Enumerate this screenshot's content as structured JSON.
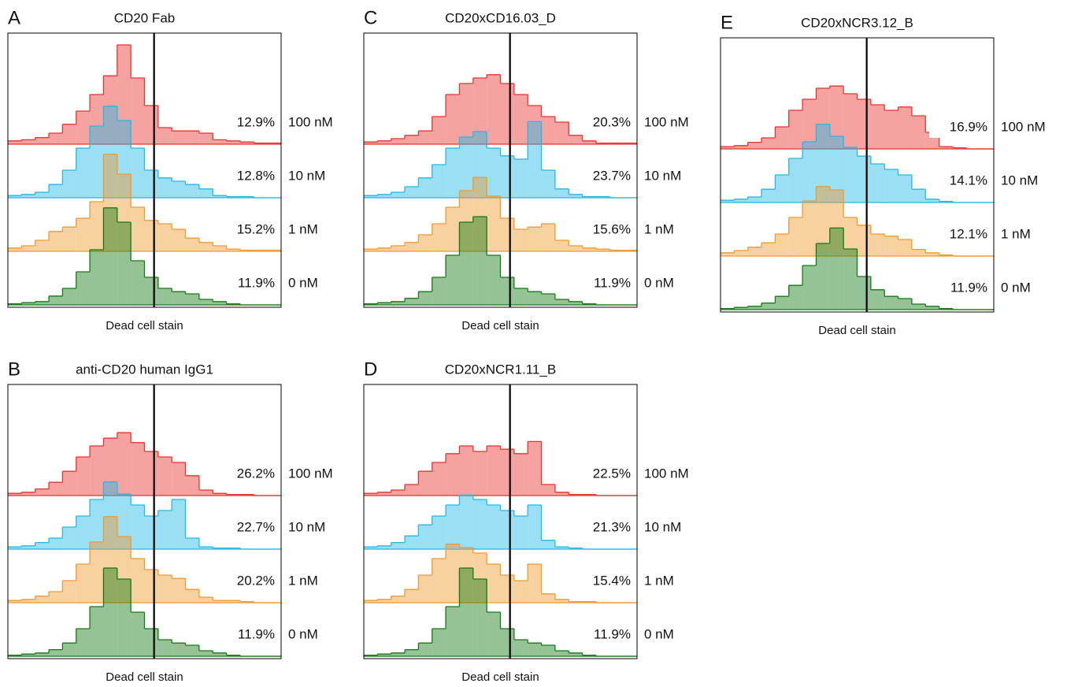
{
  "chart_data": [
    {
      "type": "histogram",
      "panel": "A",
      "title": "CD20 Fab",
      "xlabel": "Dead cell stain",
      "bins": [
        0,
        1,
        2,
        3,
        4,
        5,
        6,
        7,
        8,
        9,
        10,
        11,
        12,
        13,
        14,
        15,
        16,
        17,
        18,
        19,
        20
      ],
      "xlim": [
        0,
        20
      ],
      "ylim": [
        0,
        100
      ],
      "gate": 10.7,
      "series": [
        {
          "name": "100 nM",
          "color": "#e8332f",
          "gated": "12.9%",
          "values": [
            3,
            4,
            6,
            10,
            18,
            30,
            45,
            62,
            90,
            60,
            35,
            15,
            12,
            12,
            10,
            4,
            3,
            2,
            1,
            1
          ]
        },
        {
          "name": "10 nM",
          "color": "#22b8e8",
          "gated": "12.8%",
          "values": [
            2,
            3,
            5,
            12,
            25,
            45,
            65,
            83,
            70,
            45,
            25,
            18,
            15,
            12,
            8,
            2,
            1,
            1,
            0,
            0
          ]
        },
        {
          "name": "1 nM",
          "color": "#f0992e",
          "gated": "15.2%",
          "values": [
            3,
            5,
            10,
            18,
            22,
            30,
            45,
            88,
            70,
            40,
            28,
            25,
            20,
            12,
            8,
            5,
            2,
            1,
            1,
            1
          ]
        },
        {
          "name": "0 nM",
          "color": "#157a15",
          "gated": "11.9%",
          "values": [
            1,
            2,
            3,
            8,
            15,
            30,
            50,
            88,
            75,
            40,
            25,
            15,
            12,
            10,
            5,
            3,
            1,
            0,
            0,
            0
          ]
        }
      ]
    },
    {
      "type": "histogram",
      "panel": "C",
      "title": "CD20xCD16.03_D",
      "xlabel": "Dead cell stain",
      "bins": [
        0,
        1,
        2,
        3,
        4,
        5,
        6,
        7,
        8,
        9,
        10,
        11,
        12,
        13,
        14,
        15,
        16,
        17,
        18,
        19,
        20
      ],
      "xlim": [
        0,
        20
      ],
      "ylim": [
        0,
        100
      ],
      "gate": 10.7,
      "series": [
        {
          "name": "100 nM",
          "color": "#e8332f",
          "gated": "20.3%",
          "values": [
            2,
            3,
            5,
            8,
            12,
            25,
            45,
            55,
            60,
            63,
            55,
            45,
            35,
            25,
            20,
            8,
            3,
            1,
            1,
            1
          ]
        },
        {
          "name": "10 nM",
          "color": "#22b8e8",
          "gated": "23.7%",
          "values": [
            2,
            3,
            5,
            10,
            18,
            30,
            45,
            55,
            60,
            45,
            38,
            35,
            69,
            25,
            8,
            3,
            1,
            1,
            0,
            0
          ]
        },
        {
          "name": "1 nM",
          "color": "#f0992e",
          "gated": "15.6%",
          "values": [
            2,
            3,
            5,
            8,
            15,
            25,
            40,
            55,
            67,
            50,
            30,
            20,
            22,
            25,
            10,
            5,
            3,
            2,
            1,
            1
          ]
        },
        {
          "name": "0 nM",
          "color": "#157a15",
          "gated": "11.9%",
          "values": [
            1,
            2,
            3,
            6,
            12,
            25,
            45,
            75,
            80,
            45,
            25,
            15,
            12,
            10,
            5,
            3,
            1,
            0,
            0,
            0
          ]
        }
      ]
    },
    {
      "type": "histogram",
      "panel": "E",
      "title": "CD20xNCR3.12_B",
      "xlabel": "Dead cell stain",
      "bins": [
        0,
        1,
        2,
        3,
        4,
        5,
        6,
        7,
        8,
        9,
        10,
        11,
        12,
        13,
        14,
        15,
        16,
        17,
        18,
        19,
        20
      ],
      "xlim": [
        0,
        20
      ],
      "ylim": [
        0,
        100
      ],
      "gate": 10.7,
      "series": [
        {
          "name": "100 nM",
          "color": "#e8332f",
          "gated": "16.9%",
          "values": [
            2,
            3,
            6,
            10,
            20,
            35,
            45,
            55,
            57,
            50,
            45,
            40,
            35,
            38,
            30,
            15,
            2,
            1,
            0,
            0
          ]
        },
        {
          "name": "10 nM",
          "color": "#22b8e8",
          "gated": "14.1%",
          "values": [
            2,
            3,
            5,
            12,
            25,
            40,
            55,
            71,
            60,
            50,
            42,
            35,
            30,
            25,
            12,
            3,
            1,
            0,
            0,
            0
          ]
        },
        {
          "name": "1 nM",
          "color": "#f0992e",
          "gated": "12.1%",
          "values": [
            3,
            5,
            8,
            12,
            20,
            35,
            50,
            63,
            60,
            35,
            28,
            20,
            18,
            15,
            6,
            3,
            1,
            0,
            0,
            0
          ]
        },
        {
          "name": "0 nM",
          "color": "#157a15",
          "gated": "11.9%",
          "values": [
            1,
            2,
            3,
            6,
            12,
            22,
            40,
            60,
            74,
            55,
            30,
            18,
            12,
            10,
            5,
            3,
            1,
            0,
            0,
            0
          ]
        }
      ]
    },
    {
      "type": "histogram",
      "panel": "B",
      "title": "anti-CD20 human IgG1",
      "xlabel": "Dead cell stain",
      "bins": [
        0,
        1,
        2,
        3,
        4,
        5,
        6,
        7,
        8,
        9,
        10,
        11,
        12,
        13,
        14,
        15,
        16,
        17,
        18,
        19,
        20
      ],
      "xlim": [
        0,
        20
      ],
      "ylim": [
        0,
        100
      ],
      "gate": 10.7,
      "series": [
        {
          "name": "100 nM",
          "color": "#e8332f",
          "gated": "26.2%",
          "values": [
            2,
            3,
            6,
            12,
            22,
            35,
            45,
            52,
            57,
            48,
            40,
            35,
            30,
            18,
            5,
            2,
            1,
            1,
            0,
            0
          ]
        },
        {
          "name": "10 nM",
          "color": "#22b8e8",
          "gated": "22.7%",
          "values": [
            2,
            3,
            6,
            10,
            20,
            30,
            45,
            61,
            50,
            40,
            30,
            35,
            45,
            10,
            2,
            1,
            1,
            0,
            0,
            0
          ]
        },
        {
          "name": "1 nM",
          "color": "#f0992e",
          "gated": "20.2%",
          "values": [
            2,
            3,
            6,
            10,
            20,
            35,
            55,
            78,
            60,
            40,
            30,
            25,
            22,
            12,
            5,
            2,
            2,
            1,
            0,
            0
          ]
        },
        {
          "name": "0 nM",
          "color": "#157a15",
          "gated": "11.9%",
          "values": [
            1,
            2,
            3,
            6,
            12,
            25,
            45,
            80,
            70,
            40,
            25,
            15,
            12,
            10,
            5,
            3,
            1,
            0,
            0,
            0
          ]
        }
      ]
    },
    {
      "type": "histogram",
      "panel": "D",
      "title": "CD20xNCR1.11_B",
      "xlabel": "Dead cell stain",
      "bins": [
        0,
        1,
        2,
        3,
        4,
        5,
        6,
        7,
        8,
        9,
        10,
        11,
        12,
        13,
        14,
        15,
        16,
        17,
        18,
        19,
        20
      ],
      "xlim": [
        0,
        20
      ],
      "ylim": [
        0,
        100
      ],
      "gate": 10.7,
      "series": [
        {
          "name": "100 nM",
          "color": "#e8332f",
          "gated": "22.5%",
          "values": [
            2,
            3,
            5,
            10,
            22,
            30,
            38,
            45,
            40,
            45,
            42,
            38,
            49,
            10,
            3,
            1,
            1,
            0,
            0,
            0
          ]
        },
        {
          "name": "10 nM",
          "color": "#22b8e8",
          "gated": "21.3%",
          "values": [
            2,
            3,
            6,
            12,
            22,
            30,
            40,
            49,
            45,
            40,
            35,
            30,
            40,
            8,
            2,
            1,
            0,
            0,
            0,
            0
          ]
        },
        {
          "name": "1 nM",
          "color": "#f0992e",
          "gated": "15.4%",
          "values": [
            2,
            3,
            6,
            12,
            25,
            40,
            53,
            50,
            45,
            35,
            25,
            20,
            35,
            8,
            3,
            1,
            1,
            0,
            0,
            0
          ]
        },
        {
          "name": "0 nM",
          "color": "#157a15",
          "gated": "11.9%",
          "values": [
            1,
            2,
            3,
            6,
            12,
            25,
            45,
            80,
            70,
            40,
            25,
            15,
            12,
            10,
            5,
            3,
            1,
            0,
            0,
            0
          ]
        }
      ]
    }
  ]
}
